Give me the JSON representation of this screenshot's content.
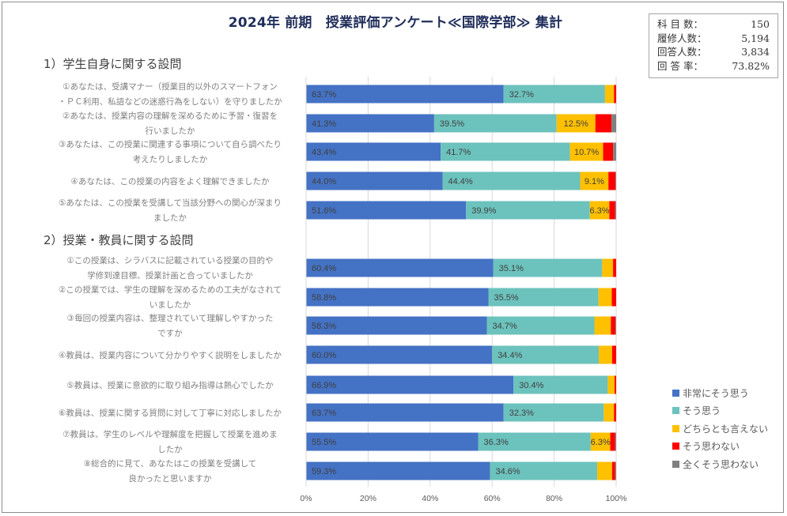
{
  "title": "2024年 前期　授業評価アンケート≪国際学部≫ 集計",
  "stats": [
    {
      "label": "科 目 数：",
      "value": "150"
    },
    {
      "label": "履修人数：",
      "value": "5,194"
    },
    {
      "label": "回答人数：",
      "value": "3,834"
    },
    {
      "label": "回 答 率：",
      "value": "73.82%"
    }
  ],
  "sections": [
    {
      "label": "1）学生自身に関する設問"
    },
    {
      "label": "2）授業・教員に関する設問"
    }
  ],
  "chart_data": {
    "type": "bar",
    "orientation": "horizontal-stacked-100",
    "title": "2024年 前期　授業評価アンケート≪国際学部≫ 集計",
    "xlabel": "",
    "ylabel": "",
    "xlim": [
      0,
      100
    ],
    "x_ticks": [
      "0%",
      "20%",
      "40%",
      "60%",
      "80%",
      "100%"
    ],
    "grid": true,
    "legend_position": "right",
    "series": [
      {
        "name": "非常にそう思う",
        "color": "#4472c4"
      },
      {
        "name": "そう思う",
        "color": "#6cc2bd"
      },
      {
        "name": "どちらとも言えない",
        "color": "#ffc000"
      },
      {
        "name": "そう思わない",
        "color": "#ff0000"
      },
      {
        "name": "全くそう思わない",
        "color": "#808080"
      }
    ],
    "categories": [
      {
        "section": 0,
        "lines": [
          "①あなたは、受講マナー（授業目的以外のスマートフォン",
          "・ＰＣ利用、私語などの迷惑行為をしない）を守りましたか"
        ],
        "values": [
          63.7,
          32.7,
          2.9,
          0.7,
          0.0
        ],
        "labels": [
          "63.7%",
          "32.7%",
          "",
          "",
          ""
        ]
      },
      {
        "section": 0,
        "lines": [
          "②あなたは、授業内容の理解を深めるために予習・復習を",
          "行いましたか"
        ],
        "values": [
          41.3,
          39.5,
          12.5,
          5.2,
          1.5
        ],
        "labels": [
          "41.3%",
          "39.5%",
          "12.5%",
          "",
          ""
        ]
      },
      {
        "section": 0,
        "lines": [
          "③あなたは、この授業に関連する事項について自ら調べたり",
          "考えたりしましたか"
        ],
        "values": [
          43.4,
          41.7,
          10.7,
          3.2,
          1.0
        ],
        "labels": [
          "43.4%",
          "41.7%",
          "10.7%",
          "",
          ""
        ]
      },
      {
        "section": 0,
        "lines": [
          "④あなたは、この授業の内容をよく理解できましたか"
        ],
        "values": [
          44.0,
          44.4,
          9.1,
          2.3,
          0.2
        ],
        "labels": [
          "44.0%",
          "44.4%",
          "9.1%",
          "",
          ""
        ]
      },
      {
        "section": 0,
        "lines": [
          "⑤あなたは、この授業を受講して当該分野への関心が深まり",
          "ましたか"
        ],
        "values": [
          51.6,
          39.9,
          6.3,
          1.9,
          0.3
        ],
        "labels": [
          "51.6%",
          "39.9%",
          "6.3%",
          "",
          ""
        ]
      },
      {
        "section": 1,
        "lines": [
          "①この授業は、シラバスに記載されている授業の目的や",
          "学修到達目標、授業計画と合っていましたか"
        ],
        "values": [
          60.4,
          35.1,
          3.5,
          1.0,
          0.0
        ],
        "labels": [
          "60.4%",
          "35.1%",
          "",
          "",
          ""
        ]
      },
      {
        "section": 1,
        "lines": [
          "②この授業では、学生の理解を深めるための工夫がなされて",
          "いましたか"
        ],
        "values": [
          58.8,
          35.5,
          4.3,
          1.4,
          0.0
        ],
        "labels": [
          "58.8%",
          "35.5%",
          "",
          "",
          ""
        ]
      },
      {
        "section": 1,
        "lines": [
          "③毎回の授業内容は、整理されていて理解しやすかった",
          "ですか"
        ],
        "values": [
          58.3,
          34.7,
          5.3,
          1.5,
          0.2
        ],
        "labels": [
          "58.3%",
          "34.7%",
          "",
          "",
          ""
        ]
      },
      {
        "section": 1,
        "lines": [
          "④教員は、授業内容について分かりやすく説明をしましたか"
        ],
        "values": [
          60.0,
          34.4,
          4.3,
          1.3,
          0.0
        ],
        "labels": [
          "60.0%",
          "34.4%",
          "",
          "",
          ""
        ]
      },
      {
        "section": 1,
        "lines": [
          "⑤教員は、授業に意欲的に取り組み指導は熱心でしたか"
        ],
        "values": [
          66.9,
          30.4,
          2.2,
          0.5,
          0.0
        ],
        "labels": [
          "66.9%",
          "30.4%",
          "",
          "",
          ""
        ]
      },
      {
        "section": 1,
        "lines": [
          "⑥教員は、授業に関する質問に対して丁寧に対応しましたか"
        ],
        "values": [
          63.7,
          32.3,
          3.3,
          0.7,
          0.0
        ],
        "labels": [
          "63.7%",
          "32.3%",
          "",
          "",
          ""
        ]
      },
      {
        "section": 1,
        "lines": [
          "⑦教員は、学生のレベルや理解度を把握して授業を進めま",
          "したか"
        ],
        "values": [
          55.5,
          36.3,
          6.3,
          1.6,
          0.3
        ],
        "labels": [
          "55.5%",
          "36.3%",
          "6.3%",
          "",
          ""
        ]
      },
      {
        "section": 1,
        "lines": [
          "⑧総合的に見て、あなたはこの授業を受講して",
          "良かったと思いますか"
        ],
        "values": [
          59.3,
          34.6,
          4.8,
          1.0,
          0.3
        ],
        "labels": [
          "59.3%",
          "34.6%",
          "",
          "",
          ""
        ]
      }
    ]
  }
}
